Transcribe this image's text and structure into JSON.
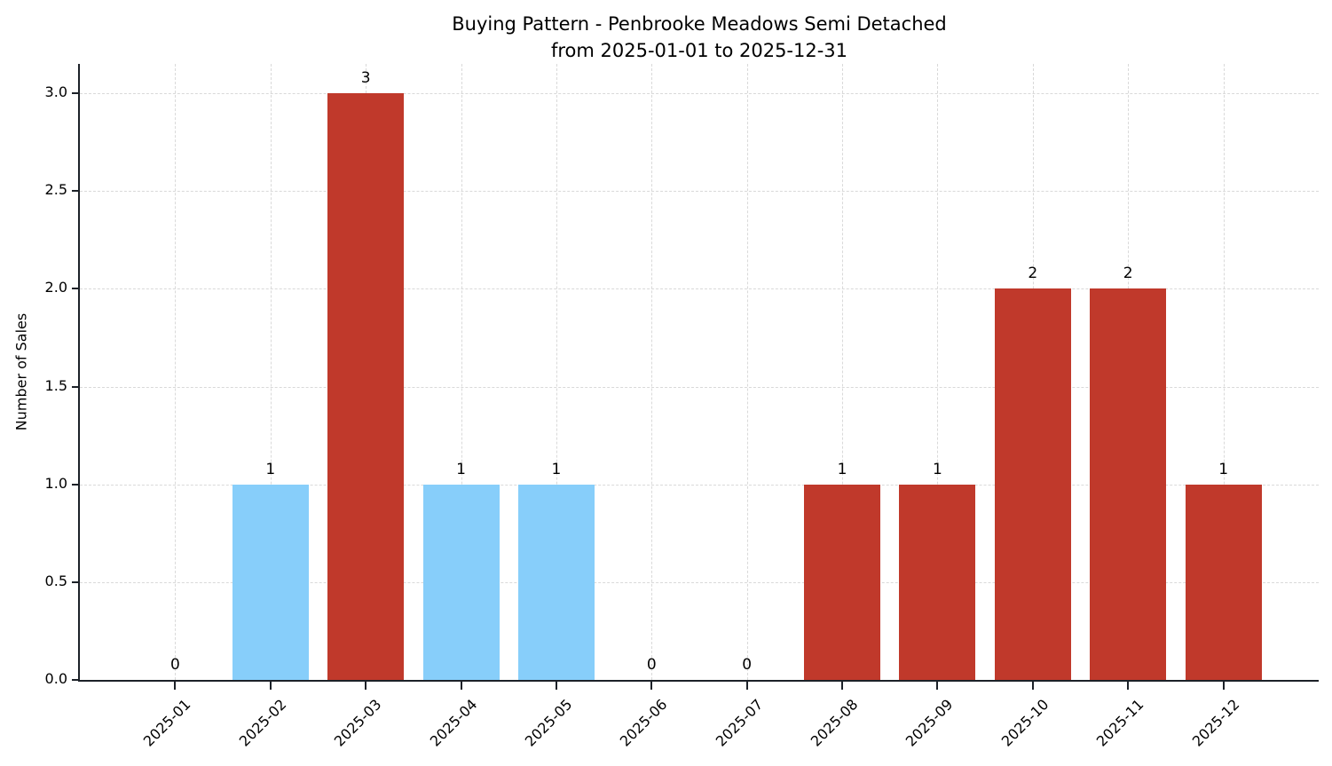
{
  "chart_data": {
    "type": "bar",
    "title": "Buying Pattern - Penbrooke Meadows Semi Detached",
    "subtitle": "from 2025-01-01 to 2025-12-31",
    "ylabel": "Number of Sales",
    "xlabel": "",
    "categories": [
      "2025-01",
      "2025-02",
      "2025-03",
      "2025-04",
      "2025-05",
      "2025-06",
      "2025-07",
      "2025-08",
      "2025-09",
      "2025-10",
      "2025-11",
      "2025-12"
    ],
    "values": [
      0,
      1,
      3,
      1,
      1,
      0,
      0,
      1,
      1,
      2,
      2,
      1
    ],
    "value_labels": [
      "0",
      "1",
      "3",
      "1",
      "1",
      "0",
      "0",
      "1",
      "1",
      "2",
      "2",
      "1"
    ],
    "bar_colors": [
      null,
      "#87CEFA",
      "#C0392B",
      "#87CEFA",
      "#87CEFA",
      null,
      null,
      "#C0392B",
      "#C0392B",
      "#C0392B",
      "#C0392B",
      "#C0392B"
    ],
    "yticks": [
      "0.0",
      "0.5",
      "1.0",
      "1.5",
      "2.0",
      "2.5",
      "3.0"
    ],
    "ytick_values": [
      0,
      0.5,
      1,
      1.5,
      2,
      2.5,
      3
    ],
    "ylim": [
      0,
      3.15
    ],
    "grid": "dashed, horizontal and vertical",
    "legend_position": "none",
    "axis_color": "#1c2128",
    "grid_color": "#d9d9d9"
  }
}
